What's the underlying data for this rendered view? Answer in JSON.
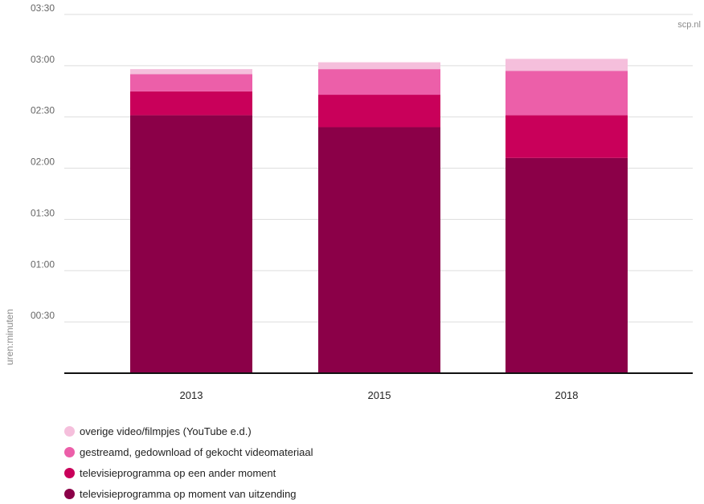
{
  "chart_data": {
    "type": "bar",
    "stacked": true,
    "categories": [
      "2013",
      "2015",
      "2018"
    ],
    "series": [
      {
        "name": "televisieprogramma op moment van uitzending",
        "color": "#8b0048",
        "values": [
          "02:31",
          "02:24",
          "02:06"
        ]
      },
      {
        "name": "televisieprogramma op een ander moment",
        "color": "#c9005a",
        "values": [
          "00:14",
          "00:19",
          "00:25"
        ]
      },
      {
        "name": "gestreamd, gedownload of gekocht videomateriaal",
        "color": "#ec5fa9",
        "values": [
          "00:10",
          "00:15",
          "00:26"
        ]
      },
      {
        "name": "overige video/filmpjes (YouTube e.d.)",
        "color": "#f5bfdc",
        "values": [
          "00:03",
          "00:04",
          "00:07"
        ]
      }
    ],
    "yticks": [
      "00:30",
      "01:00",
      "01:30",
      "02:00",
      "02:30",
      "03:00",
      "03:30"
    ],
    "ylim": [
      "00:00",
      "03:30"
    ],
    "ylabel": "uren:minuten",
    "xlabel": "",
    "grid": true,
    "legend_position": "bottom-left",
    "legend_order": [
      3,
      2,
      1,
      0
    ]
  },
  "source": "scp.nl"
}
